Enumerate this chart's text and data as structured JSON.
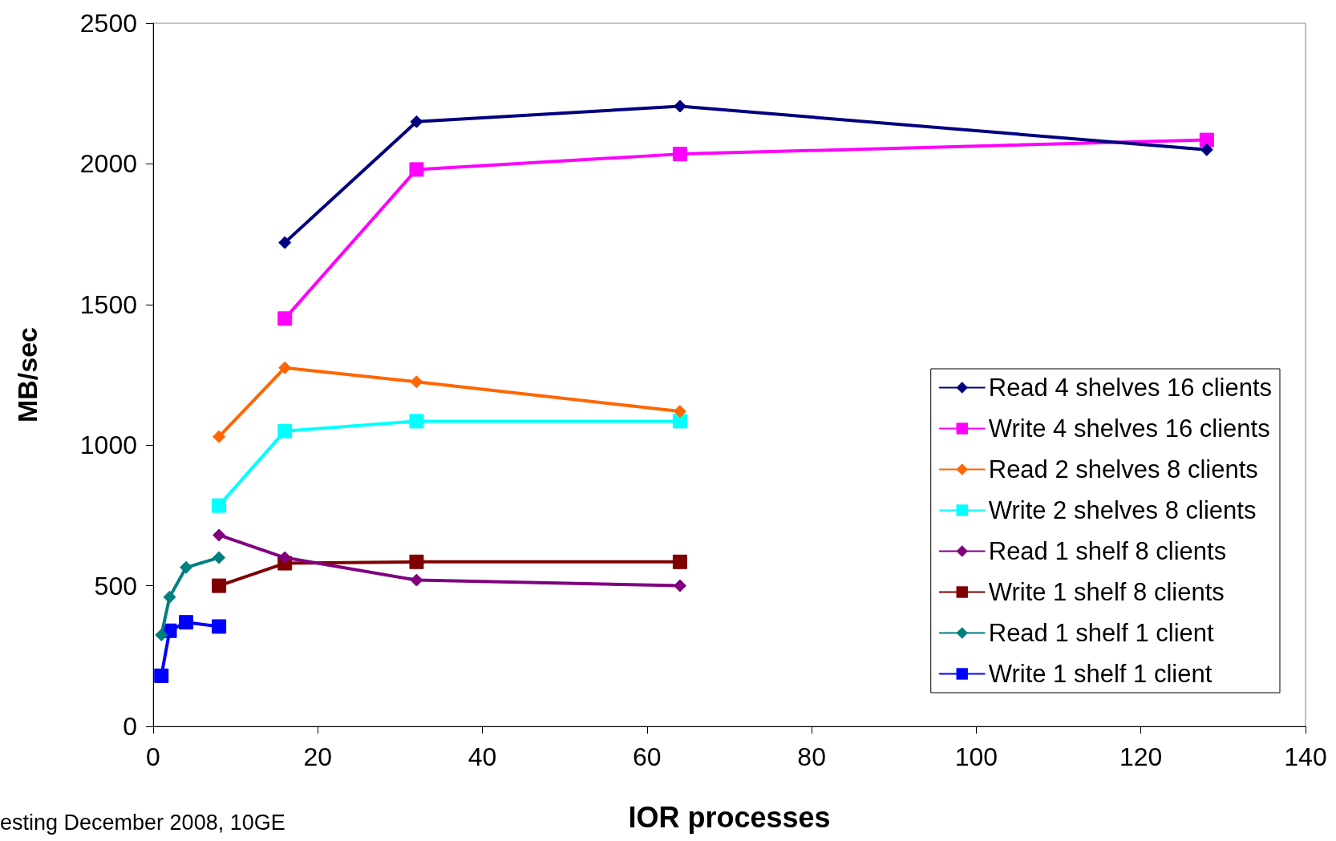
{
  "chart_data": {
    "type": "line",
    "xlabel": "IOR processes",
    "ylabel": "MB/sec",
    "annotations": [
      "esting December 2008, 10GE"
    ],
    "xlim": [
      0,
      140
    ],
    "xticks": [
      0,
      20,
      40,
      60,
      80,
      100,
      120,
      140
    ],
    "ylim": [
      0,
      2500
    ],
    "yticks": [
      0,
      500,
      1000,
      1500,
      2000,
      2500
    ],
    "grid": false,
    "legend": "right",
    "line_style": "solid",
    "series": [
      {
        "name": "Read 4 shelves 16 clients",
        "color": "#000080",
        "marker": "diamond",
        "x": [
          16,
          32,
          64,
          128
        ],
        "values": [
          1720,
          2150,
          2205,
          2050
        ]
      },
      {
        "name": "Write 4 shelves 16 clients",
        "color": "#ff00ff",
        "marker": "square",
        "x": [
          16,
          32,
          64,
          128
        ],
        "values": [
          1450,
          1980,
          2035,
          2085
        ]
      },
      {
        "name": "Read 2 shelves 8 clients",
        "color": "#ff6600",
        "marker": "diamond",
        "x": [
          8,
          16,
          32,
          64
        ],
        "values": [
          1030,
          1275,
          1225,
          1120
        ]
      },
      {
        "name": "Write 2 shelves 8 clients",
        "color": "#00ffff",
        "marker": "square",
        "x": [
          8,
          16,
          32,
          64
        ],
        "values": [
          785,
          1050,
          1085,
          1085
        ]
      },
      {
        "name": "Read 1 shelf 8 clients",
        "color": "#800080",
        "marker": "diamond",
        "x": [
          8,
          16,
          32,
          64
        ],
        "values": [
          680,
          600,
          520,
          500
        ]
      },
      {
        "name": "Write 1 shelf 8 clients",
        "color": "#800000",
        "marker": "square",
        "x": [
          8,
          16,
          32,
          64
        ],
        "values": [
          500,
          580,
          585,
          585
        ]
      },
      {
        "name": "Read 1 shelf 1 client",
        "color": "#008080",
        "marker": "diamond",
        "x": [
          1,
          2,
          4,
          8
        ],
        "values": [
          325,
          460,
          565,
          600
        ]
      },
      {
        "name": "Write 1 shelf 1 client",
        "color": "#0000ff",
        "marker": "square",
        "x": [
          1,
          2,
          4,
          8
        ],
        "values": [
          180,
          340,
          370,
          355
        ]
      }
    ]
  }
}
